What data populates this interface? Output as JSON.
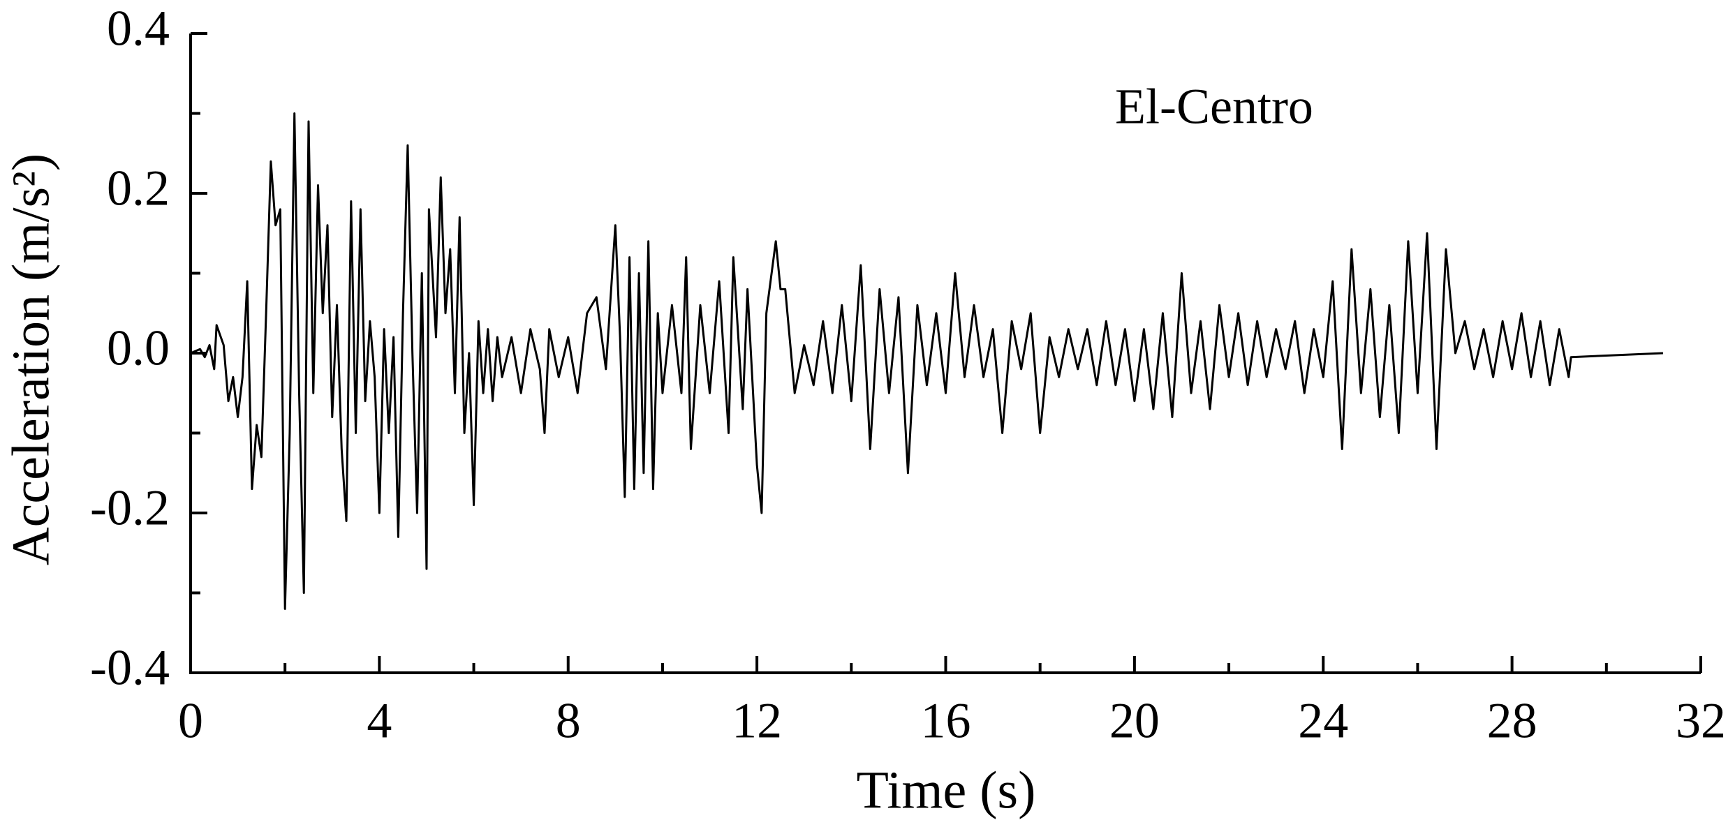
{
  "chart_data": {
    "type": "line",
    "annotation": "El-Centro",
    "xlabel": "Time (s)",
    "ylabel": "Acceleration (m/s²)",
    "color": "#000000",
    "xlim": [
      0,
      32
    ],
    "xticks": [
      0,
      4,
      8,
      12,
      16,
      20,
      24,
      28,
      32
    ],
    "xminorticks": [
      2,
      6,
      10,
      14,
      18,
      22,
      26,
      30
    ],
    "ylim": [
      -0.4,
      0.4
    ],
    "yticks": [
      -0.4,
      -0.2,
      {
        "value": 0,
        "label": "0.0"
      },
      0.2,
      0.4
    ],
    "yminorticks": [
      -0.3,
      -0.1,
      0.1,
      0.3
    ],
    "grid": false,
    "x": [
      0,
      0.2,
      0.3,
      0.4,
      0.5,
      0.55,
      0.7,
      0.8,
      0.9,
      1.0,
      1.1,
      1.2,
      1.3,
      1.4,
      1.5,
      1.6,
      1.7,
      1.8,
      1.9,
      2.0,
      2.1,
      2.2,
      2.3,
      2.4,
      2.5,
      2.6,
      2.7,
      2.8,
      2.9,
      3.0,
      3.1,
      3.2,
      3.3,
      3.4,
      3.5,
      3.6,
      3.7,
      3.8,
      3.9,
      4.0,
      4.1,
      4.2,
      4.3,
      4.4,
      4.5,
      4.6,
      4.7,
      4.8,
      4.9,
      5.0,
      5.05,
      5.2,
      5.3,
      5.4,
      5.5,
      5.6,
      5.7,
      5.8,
      5.9,
      6.0,
      6.1,
      6.2,
      6.3,
      6.4,
      6.5,
      6.6,
      6.8,
      7.0,
      7.2,
      7.4,
      7.5,
      7.6,
      7.8,
      8.0,
      8.2,
      8.4,
      8.6,
      8.8,
      9.0,
      9.1,
      9.2,
      9.3,
      9.4,
      9.5,
      9.6,
      9.7,
      9.8,
      9.9,
      10.0,
      10.2,
      10.4,
      10.5,
      10.6,
      10.8,
      11.0,
      11.2,
      11.4,
      11.5,
      11.7,
      11.8,
      12.0,
      12.1,
      12.2,
      12.4,
      12.5,
      12.6,
      12.8,
      13.0,
      13.2,
      13.4,
      13.6,
      13.8,
      14.0,
      14.2,
      14.4,
      14.6,
      14.8,
      15.0,
      15.2,
      15.4,
      15.6,
      15.8,
      16.0,
      16.2,
      16.4,
      16.6,
      16.8,
      17.0,
      17.2,
      17.4,
      17.6,
      17.8,
      18.0,
      18.2,
      18.4,
      18.6,
      18.8,
      19.0,
      19.2,
      19.4,
      19.6,
      19.8,
      20.0,
      20.2,
      20.4,
      20.6,
      20.8,
      21.0,
      21.2,
      21.4,
      21.6,
      21.8,
      22.0,
      22.2,
      22.4,
      22.6,
      22.8,
      23.0,
      23.2,
      23.4,
      23.6,
      23.8,
      24.0,
      24.2,
      24.4,
      24.6,
      24.8,
      25.0,
      25.2,
      25.4,
      25.6,
      25.8,
      26.0,
      26.2,
      26.4,
      26.6,
      26.8,
      27.0,
      27.2,
      27.4,
      27.6,
      27.8,
      28.0,
      28.2,
      28.4,
      28.6,
      28.8,
      29.0,
      29.2,
      29.25,
      31.2
    ],
    "values": [
      0,
      0.005,
      -0.005,
      0.01,
      -0.02,
      0.035,
      0.01,
      -0.06,
      -0.03,
      -0.08,
      -0.03,
      0.09,
      -0.17,
      -0.09,
      -0.13,
      0.05,
      0.24,
      0.16,
      0.18,
      -0.32,
      -0.1,
      0.3,
      -0.05,
      -0.3,
      0.29,
      -0.05,
      0.21,
      0.05,
      0.16,
      -0.08,
      0.06,
      -0.12,
      -0.21,
      0.19,
      -0.1,
      0.18,
      -0.06,
      0.04,
      -0.03,
      -0.2,
      0.03,
      -0.1,
      0.02,
      -0.23,
      0.05,
      0.26,
      0.0,
      -0.2,
      0.1,
      -0.27,
      0.18,
      0.02,
      0.22,
      0.05,
      0.13,
      -0.05,
      0.17,
      -0.1,
      0.0,
      -0.19,
      0.04,
      -0.05,
      0.03,
      -0.06,
      0.02,
      -0.03,
      0.02,
      -0.05,
      0.03,
      -0.02,
      -0.1,
      0.03,
      -0.03,
      0.02,
      -0.05,
      0.05,
      0.07,
      -0.02,
      0.16,
      0.02,
      -0.18,
      0.12,
      -0.17,
      0.1,
      -0.15,
      0.14,
      -0.17,
      0.05,
      -0.05,
      0.06,
      -0.05,
      0.12,
      -0.12,
      0.06,
      -0.05,
      0.09,
      -0.1,
      0.12,
      -0.07,
      0.08,
      -0.14,
      -0.2,
      0.05,
      0.14,
      0.08,
      0.08,
      -0.05,
      0.01,
      -0.04,
      0.04,
      -0.05,
      0.06,
      -0.06,
      0.11,
      -0.12,
      0.08,
      -0.05,
      0.07,
      -0.15,
      0.06,
      -0.04,
      0.05,
      -0.05,
      0.1,
      -0.03,
      0.06,
      -0.03,
      0.03,
      -0.1,
      0.04,
      -0.02,
      0.05,
      -0.1,
      0.02,
      -0.03,
      0.03,
      -0.02,
      0.03,
      -0.04,
      0.04,
      -0.04,
      0.03,
      -0.06,
      0.03,
      -0.07,
      0.05,
      -0.08,
      0.1,
      -0.05,
      0.04,
      -0.07,
      0.06,
      -0.03,
      0.05,
      -0.04,
      0.04,
      -0.03,
      0.03,
      -0.02,
      0.04,
      -0.05,
      0.03,
      -0.03,
      0.09,
      -0.12,
      0.13,
      -0.05,
      0.08,
      -0.08,
      0.06,
      -0.1,
      0.14,
      -0.05,
      0.15,
      -0.12,
      0.13,
      0.0,
      0.04,
      -0.02,
      0.03,
      -0.03,
      0.04,
      -0.02,
      0.05,
      -0.03,
      0.04,
      -0.04,
      0.03,
      -0.03,
      -0.005,
      0.0
    ]
  }
}
